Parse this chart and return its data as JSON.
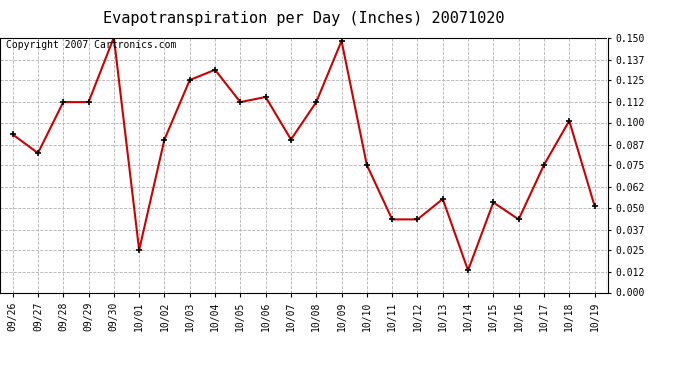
{
  "title": "Evapotranspiration per Day (Inches) 20071020",
  "copyright_text": "Copyright 2007 Cartronics.com",
  "x_labels": [
    "09/26",
    "09/27",
    "09/28",
    "09/29",
    "09/30",
    "10/01",
    "10/02",
    "10/03",
    "10/04",
    "10/05",
    "10/06",
    "10/07",
    "10/08",
    "10/09",
    "10/10",
    "10/11",
    "10/12",
    "10/13",
    "10/14",
    "10/15",
    "10/16",
    "10/17",
    "10/18",
    "10/19"
  ],
  "y_values": [
    0.093,
    0.082,
    0.112,
    0.112,
    0.15,
    0.025,
    0.09,
    0.125,
    0.131,
    0.112,
    0.115,
    0.09,
    0.112,
    0.148,
    0.075,
    0.043,
    0.043,
    0.055,
    0.013,
    0.053,
    0.043,
    0.075,
    0.101,
    0.051
  ],
  "line_color": "#cc0000",
  "marker": "+",
  "marker_size": 5,
  "marker_color": "#000000",
  "line_width": 1.5,
  "ylim": [
    0.0,
    0.15
  ],
  "yticks": [
    0.0,
    0.012,
    0.025,
    0.037,
    0.05,
    0.062,
    0.075,
    0.087,
    0.1,
    0.112,
    0.125,
    0.137,
    0.15
  ],
  "background_color": "#ffffff",
  "grid_color": "#aaaaaa",
  "title_fontsize": 11,
  "copyright_fontsize": 7,
  "tick_fontsize": 7,
  "ytick_fontsize": 7
}
